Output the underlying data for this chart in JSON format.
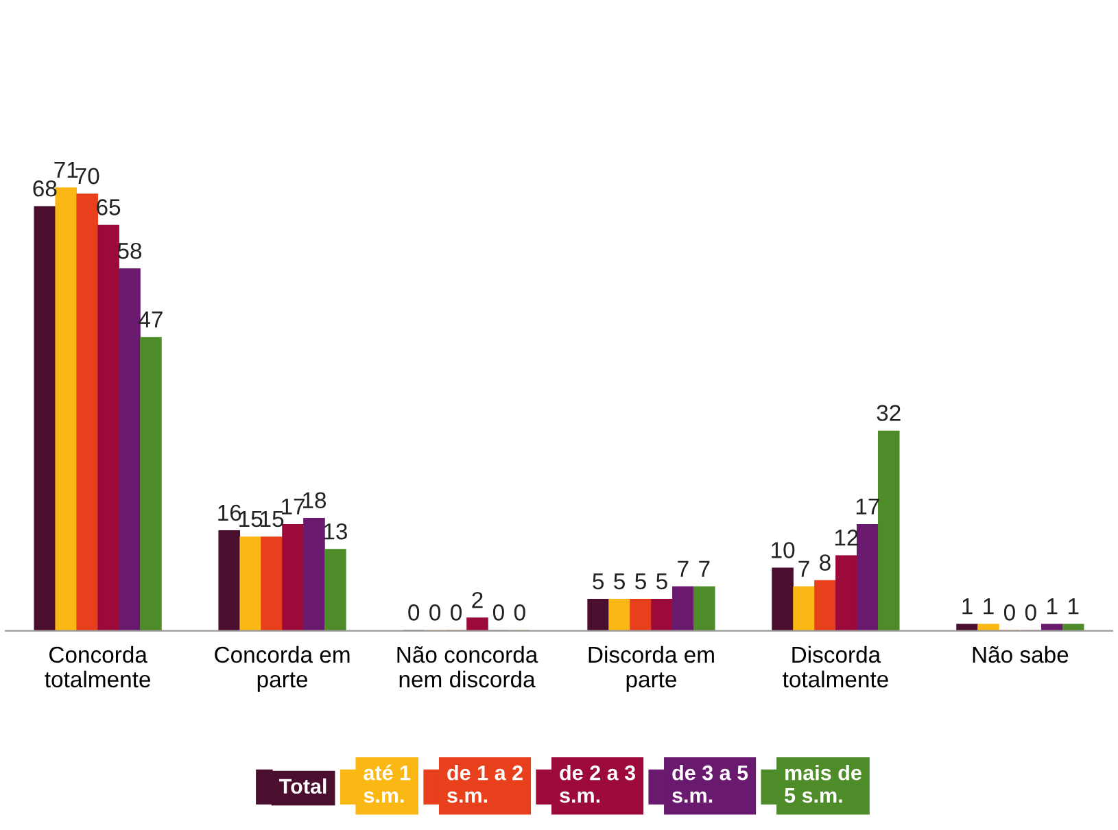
{
  "chart_data": {
    "type": "bar",
    "categories": [
      "Concorda\ntotalmente",
      "Concorda em\nparte",
      "Não concorda\nnem discorda",
      "Discorda em\nparte",
      "Discorda\ntotalmente",
      "Não sabe"
    ],
    "series": [
      {
        "name": "Total",
        "color": "#4a0f2e",
        "values": [
          68,
          16,
          0,
          5,
          10,
          1
        ]
      },
      {
        "name": "até 1\ns.m.",
        "color": "#fbb713",
        "values": [
          71,
          15,
          0,
          5,
          7,
          1
        ]
      },
      {
        "name": "de 1 a 2\ns.m.",
        "color": "#e8401c",
        "values": [
          70,
          15,
          0,
          5,
          8,
          0
        ]
      },
      {
        "name": "de 2 a 3\ns.m.",
        "color": "#9c0a3a",
        "values": [
          65,
          17,
          2,
          5,
          12,
          0
        ]
      },
      {
        "name": "de 3 a 5\ns.m.",
        "color": "#6a1a6e",
        "values": [
          58,
          18,
          0,
          7,
          17,
          1
        ]
      },
      {
        "name": "mais de\n5 s.m.",
        "color": "#4e8c2a",
        "values": [
          47,
          13,
          0,
          7,
          32,
          1
        ]
      }
    ],
    "data_labels": true,
    "legend": "bottom",
    "grid": false
  }
}
